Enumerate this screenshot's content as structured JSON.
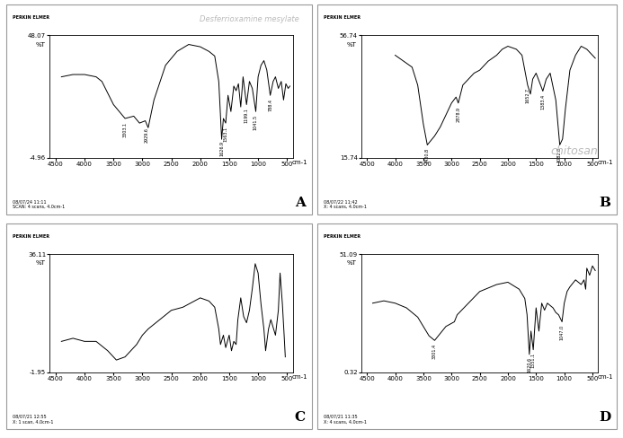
{
  "chart_data": [
    {
      "type": "line",
      "panel": "A",
      "header": "PERKIN ELMER",
      "title": "Desferrioxamine mesylate",
      "footer": [
        "08/07/24 11:11",
        "SCAN: 4 scans, 4.0cm-1"
      ],
      "xlabel": "cm-1",
      "ylabel": "%T",
      "color": "#000000",
      "xlim": [
        4600,
        400
      ],
      "xticks": [
        4500,
        4000,
        3500,
        3000,
        2500,
        2000,
        1500,
        1000,
        500
      ],
      "ylim": [
        -4.96,
        48.07
      ],
      "yticks": [
        -4.96,
        48.07
      ],
      "x": [
        4400,
        4200,
        4000,
        3800,
        3700,
        3500,
        3300,
        3150,
        3050,
        2950,
        2900,
        2800,
        2600,
        2400,
        2200,
        2000,
        1850,
        1750,
        1680,
        1630,
        1600,
        1560,
        1520,
        1470,
        1420,
        1380,
        1340,
        1300,
        1260,
        1200,
        1150,
        1100,
        1040,
        1000,
        950,
        900,
        850,
        790,
        740,
        700,
        650,
        600,
        560,
        520,
        480,
        450
      ],
      "values": [
        30,
        31,
        31,
        30,
        28,
        18,
        12,
        13,
        10,
        11,
        8,
        20,
        35,
        41,
        44,
        43,
        41,
        39,
        28,
        3,
        12,
        10,
        22,
        15,
        26,
        24,
        27,
        17,
        30,
        18,
        28,
        25,
        15,
        30,
        35,
        37,
        33,
        22,
        28,
        30,
        25,
        28,
        20,
        27,
        25,
        26
      ],
      "annotations": [
        {
          "x": 3303.1,
          "label": "3303.1"
        },
        {
          "x": 2929.6,
          "label": "2929.6"
        },
        {
          "x": 1626.9,
          "label": "1626.9"
        },
        {
          "x": 1563.1,
          "label": "1563.1"
        },
        {
          "x": 1199.1,
          "label": "1199.1"
        },
        {
          "x": 1041.5,
          "label": "1041.5"
        },
        {
          "x": 788.4,
          "label": "788.4"
        }
      ]
    },
    {
      "type": "line",
      "panel": "B",
      "header": "PERKIN ELMER",
      "title": "chitosan",
      "footer": [
        "08/07/22 11:42",
        "X: 4 scans, 4.0cm-1"
      ],
      "xlabel": "cm-1",
      "ylabel": "%T",
      "color": "#000000",
      "xlim": [
        4600,
        400
      ],
      "xticks": [
        4500,
        4000,
        3500,
        3000,
        2500,
        2000,
        1500,
        1000,
        500
      ],
      "ylim": [
        15.74,
        56.74
      ],
      "yticks": [
        15.74,
        56.74
      ],
      "x": [
        4000,
        3850,
        3700,
        3600,
        3500,
        3430,
        3300,
        3200,
        3000,
        2920,
        2880,
        2800,
        2600,
        2500,
        2350,
        2200,
        2100,
        2000,
        1850,
        1750,
        1650,
        1600,
        1560,
        1500,
        1420,
        1380,
        1320,
        1250,
        1150,
        1080,
        1030,
        980,
        900,
        800,
        700,
        600,
        500,
        450
      ],
      "values": [
        50,
        48,
        46,
        40,
        27,
        20,
        23,
        26,
        34,
        36,
        34,
        40,
        44,
        45,
        48,
        50,
        52,
        53,
        52,
        50,
        40,
        37,
        42,
        44,
        40,
        38,
        42,
        44,
        35,
        20,
        22,
        32,
        45,
        50,
        53,
        52,
        50,
        49
      ],
      "annotations": [
        {
          "x": 3430.8,
          "label": "3430.8"
        },
        {
          "x": 2878.9,
          "label": "2878.9"
        },
        {
          "x": 1652.7,
          "label": "1652.7"
        },
        {
          "x": 1383.4,
          "label": "1383.4"
        },
        {
          "x": 1082.8,
          "label": "1082.8"
        }
      ]
    },
    {
      "type": "line",
      "panel": "C",
      "header": "PERKIN ELMER",
      "footer": [
        "08/07/21 12:55",
        "X: 1 scan, 4.0cm-1"
      ],
      "xlabel": "cm-1",
      "ylabel": "%T",
      "color": "#000000",
      "xlim": [
        4600,
        400
      ],
      "xticks": [
        4500,
        4000,
        3500,
        3000,
        2500,
        2000,
        1500,
        1000,
        500
      ],
      "ylim": [
        -1.95,
        36.11
      ],
      "yticks": [
        -1.95,
        36.11
      ],
      "x": [
        4400,
        4200,
        4000,
        3800,
        3600,
        3450,
        3300,
        3100,
        3000,
        2900,
        2700,
        2500,
        2300,
        2200,
        2000,
        1850,
        1750,
        1680,
        1650,
        1600,
        1560,
        1500,
        1460,
        1420,
        1380,
        1350,
        1300,
        1250,
        1200,
        1150,
        1100,
        1050,
        1000,
        950,
        900,
        870,
        820,
        780,
        700,
        650,
        620,
        580,
        550,
        530
      ],
      "values": [
        8,
        9,
        8,
        8,
        5,
        2,
        3,
        7,
        10,
        12,
        15,
        18,
        19,
        20,
        22,
        21,
        19,
        12,
        7,
        10,
        6,
        10,
        5,
        8,
        7,
        15,
        22,
        16,
        14,
        18,
        25,
        33,
        30,
        20,
        12,
        5,
        12,
        15,
        10,
        18,
        30,
        20,
        10,
        3
      ],
      "annotations": []
    },
    {
      "type": "line",
      "panel": "D",
      "header": "PERKIN ELMER",
      "footer": [
        "08/07/21 11:35",
        "X: 4 scans, 4.0cm-1"
      ],
      "xlabel": "cm-1",
      "ylabel": "%T",
      "color": "#000000",
      "xlim": [
        4600,
        400
      ],
      "xticks": [
        4500,
        4000,
        3500,
        3000,
        2500,
        2000,
        1500,
        1000,
        500
      ],
      "ylim": [
        0.32,
        51.09
      ],
      "yticks": [
        0.32,
        51.09
      ],
      "x": [
        4400,
        4200,
        4000,
        3800,
        3600,
        3400,
        3300,
        3100,
        2950,
        2900,
        2700,
        2500,
        2200,
        2000,
        1800,
        1700,
        1660,
        1620,
        1590,
        1550,
        1500,
        1450,
        1400,
        1350,
        1300,
        1250,
        1200,
        1150,
        1100,
        1040,
        1000,
        950,
        900,
        800,
        700,
        650,
        620,
        600,
        550,
        500,
        450
      ],
      "values": [
        30,
        31,
        30,
        28,
        24,
        16,
        14,
        20,
        22,
        25,
        30,
        35,
        38,
        39,
        36,
        32,
        25,
        8,
        18,
        10,
        28,
        18,
        30,
        27,
        30,
        29,
        28,
        26,
        25,
        22,
        30,
        35,
        37,
        40,
        38,
        40,
        36,
        45,
        42,
        46,
        44
      ],
      "annotations": [
        {
          "x": 3301.4,
          "label": "3301.4"
        },
        {
          "x": 1620.6,
          "label": "1620.6"
        },
        {
          "x": 1551.1,
          "label": "1551.1"
        },
        {
          "x": 1047.0,
          "label": "1047.0"
        }
      ]
    }
  ]
}
